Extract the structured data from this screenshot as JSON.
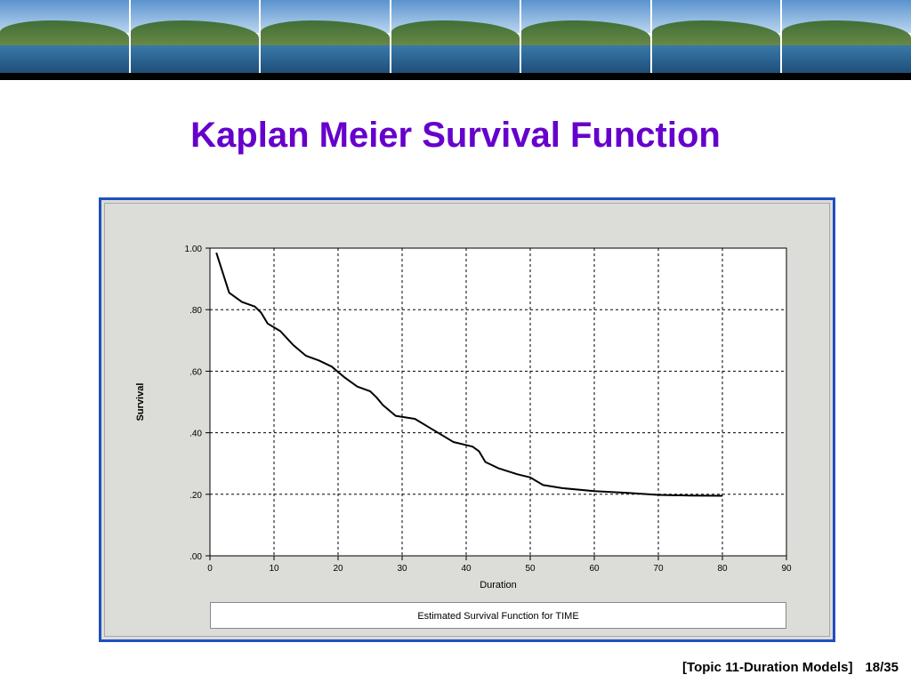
{
  "slide": {
    "title": "Kaplan Meier Survival Function",
    "footer_topic": "[Topic 11-Duration Models]",
    "footer_page": "18/35",
    "colors": {
      "title": "#6600cc",
      "frame_border": "#1f4fbf",
      "banner_bar": "#000000"
    }
  },
  "chart_data": {
    "type": "line",
    "title": "",
    "xlabel": "Duration",
    "ylabel": "Survival",
    "caption": "Estimated Survival Function for TIME",
    "xlim": [
      0,
      90
    ],
    "ylim": [
      0,
      1
    ],
    "x_ticks": [
      0,
      10,
      20,
      30,
      40,
      50,
      60,
      70,
      80,
      90
    ],
    "x_tick_labels": [
      "0",
      "10",
      "20",
      "30",
      "40",
      "50",
      "60",
      "70",
      "80",
      "90"
    ],
    "y_ticks": [
      0,
      0.2,
      0.4,
      0.6,
      0.8,
      1.0
    ],
    "y_tick_labels": [
      ".00",
      ".20",
      ".40",
      ".60",
      ".80",
      "1.00"
    ],
    "grid": true,
    "series": [
      {
        "x": [
          1,
          3,
          5,
          7,
          8,
          9,
          11,
          13,
          15,
          17,
          19,
          21,
          23,
          25,
          26,
          27,
          29,
          32,
          34,
          36,
          38,
          41,
          42,
          43,
          45,
          48,
          50,
          52,
          55,
          60,
          65,
          70,
          75,
          80
        ],
        "values": [
          0.985,
          0.855,
          0.825,
          0.81,
          0.79,
          0.755,
          0.73,
          0.685,
          0.65,
          0.635,
          0.615,
          0.58,
          0.55,
          0.535,
          0.515,
          0.49,
          0.455,
          0.445,
          0.42,
          0.395,
          0.37,
          0.355,
          0.34,
          0.305,
          0.285,
          0.265,
          0.255,
          0.23,
          0.22,
          0.21,
          0.205,
          0.198,
          0.196,
          0.195
        ]
      }
    ]
  }
}
